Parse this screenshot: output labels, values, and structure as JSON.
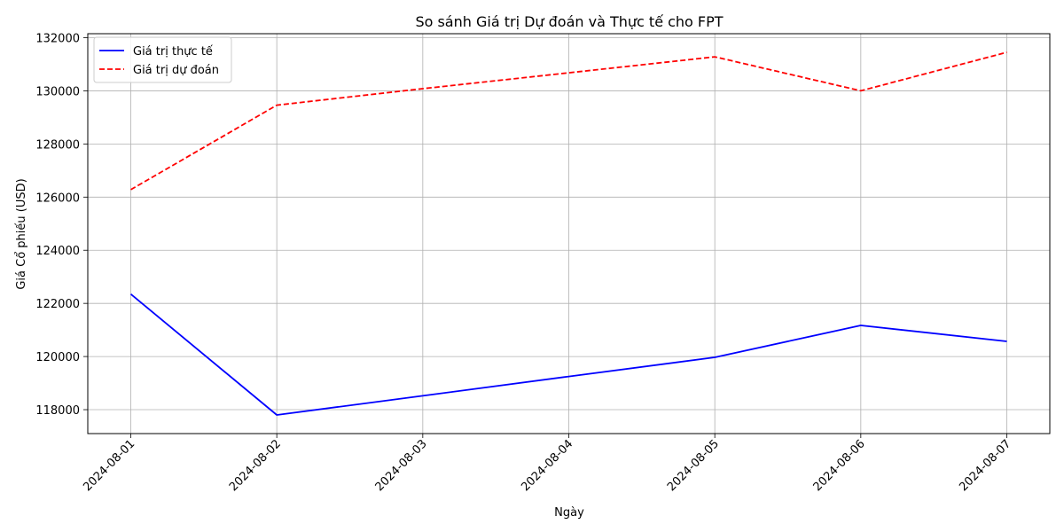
{
  "chart_data": {
    "type": "line",
    "title": "So sánh Giá trị Dự đoán và Thực tế cho FPT",
    "xlabel": "Ngày",
    "ylabel": "Giá Cổ phiếu (USD)",
    "x": [
      "2024-08-01",
      "2024-08-02",
      "2024-08-03",
      "2024-08-04",
      "2024-08-05",
      "2024-08-06",
      "2024-08-07"
    ],
    "ylim": [
      117100,
      132150
    ],
    "yticks": [
      118000,
      120000,
      122000,
      124000,
      126000,
      128000,
      130000,
      132000
    ],
    "grid": true,
    "legend_position": "top-left",
    "series": [
      {
        "name": "Giá trị thực tế",
        "color": "#0000ff",
        "style": "solid",
        "values": [
          122350,
          117800,
          118520,
          119250,
          119970,
          121170,
          120570
        ]
      },
      {
        "name": "Giá trị dự đoán",
        "color": "#ff0000",
        "style": "dashed",
        "values": [
          126280,
          129460,
          130080,
          130680,
          131280,
          130000,
          131450
        ]
      }
    ]
  }
}
